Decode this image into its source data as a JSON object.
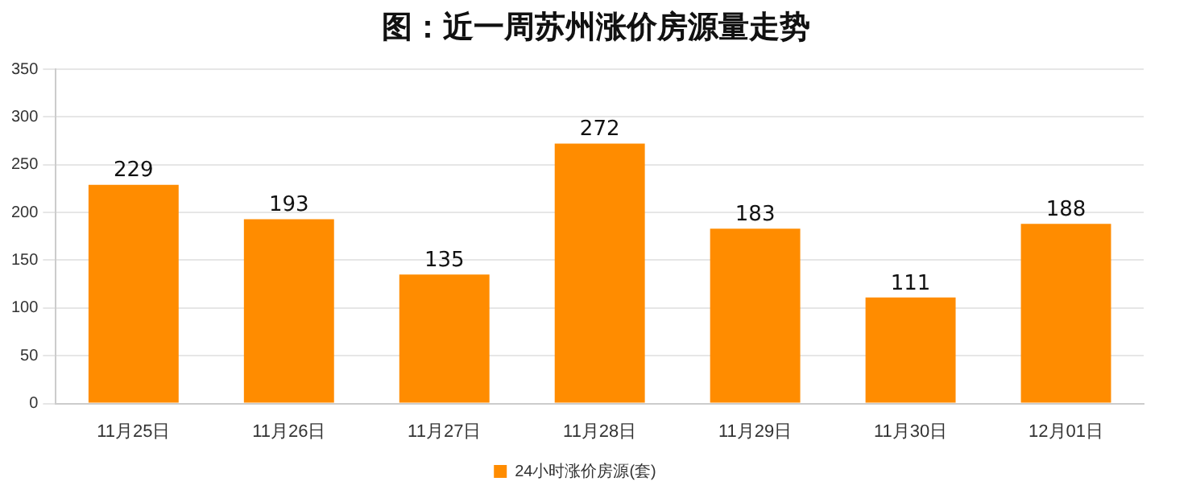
{
  "chart_data": {
    "type": "bar",
    "title": "图：近一周苏州涨价房源量走势",
    "categories": [
      "11月25日",
      "11月26日",
      "11月27日",
      "11月28日",
      "11月29日",
      "11月30日",
      "12月01日"
    ],
    "series": [
      {
        "name": "24小时涨价房源(套)",
        "color": "#ff8c00",
        "values": [
          229,
          193,
          135,
          272,
          183,
          111,
          188
        ]
      }
    ],
    "ylim": [
      0,
      350
    ],
    "yticks": [
      0,
      50,
      100,
      150,
      200,
      250,
      300,
      350
    ],
    "grid": "y",
    "legend": "bottom",
    "data_labels": true
  }
}
